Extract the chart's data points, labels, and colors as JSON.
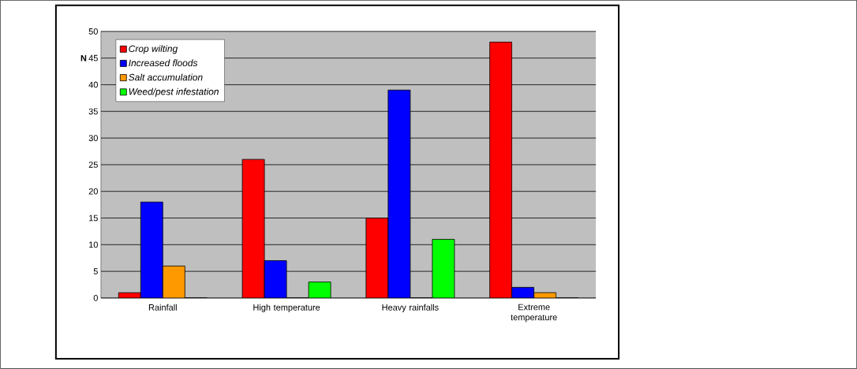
{
  "chart_data": {
    "type": "bar",
    "ylabel": "N",
    "categories": [
      "Rainfall",
      "High temperature",
      "Heavy rainfalls",
      "Extreme temperature"
    ],
    "series": [
      {
        "name": "Crop wilting",
        "color": "#ff0000",
        "values": [
          1,
          26,
          15,
          48
        ]
      },
      {
        "name": "Increased floods",
        "color": "#0000ff",
        "values": [
          18,
          7,
          39,
          2
        ]
      },
      {
        "name": "Salt accumulation",
        "color": "#ff9900",
        "values": [
          6,
          0,
          0,
          1
        ]
      },
      {
        "name": "Weed/pest infestation",
        "color": "#00ff00",
        "values": [
          0,
          3,
          11,
          0
        ]
      }
    ],
    "ylim": [
      0,
      50
    ],
    "yticks": [
      0,
      5,
      10,
      15,
      20,
      25,
      30,
      35,
      40,
      45,
      50
    ],
    "grid": "y",
    "legend": "top left"
  }
}
